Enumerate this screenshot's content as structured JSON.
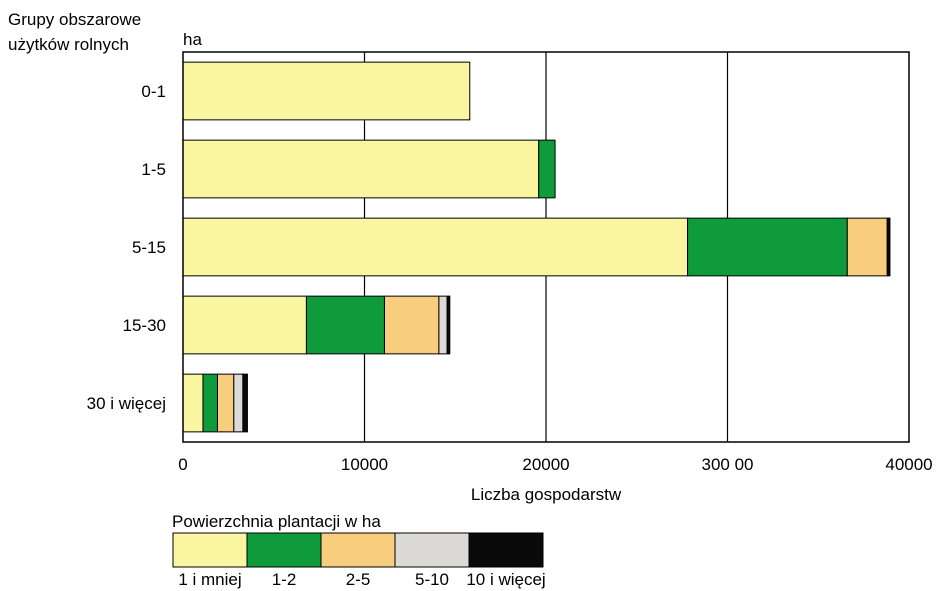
{
  "chart_data": {
    "type": "bar",
    "orientation": "horizontal",
    "stacked": true,
    "title": "",
    "ylabel": "Grupy obszarowe użytków rolnych",
    "ylabel_lines": [
      "Grupy obszarowe",
      "użytków rolnych"
    ],
    "yunit": "ha",
    "xlabel": "Liczba gospodarstw",
    "xlim": [
      0,
      40000
    ],
    "xticks": [
      0,
      10000,
      20000,
      30000,
      40000
    ],
    "xtick_labels": [
      "0",
      "10000",
      "20000",
      "300 00",
      "40000"
    ],
    "grid": "vertical",
    "categories": [
      "0-1",
      "1-5",
      "5-15",
      "15-30",
      "30 i więcej"
    ],
    "legend_title": "Powierzchnia plantacji w ha",
    "legend_position": "bottom",
    "series": [
      {
        "name": "1 i mniej",
        "color": "#faf5a0",
        "values": [
          15800,
          19600,
          27800,
          6800,
          1100
        ]
      },
      {
        "name": "1-2",
        "color": "#0f9a3c",
        "values": [
          0,
          900,
          8800,
          4300,
          800
        ]
      },
      {
        "name": "2-5",
        "color": "#f8cd7d",
        "values": [
          0,
          0,
          2200,
          3000,
          900
        ]
      },
      {
        "name": "5-10",
        "color": "#dcdad6",
        "values": [
          0,
          0,
          0,
          450,
          500
        ]
      },
      {
        "name": "10 i więcej",
        "color": "#0a0a0a",
        "values": [
          0,
          0,
          150,
          150,
          250
        ]
      }
    ]
  }
}
